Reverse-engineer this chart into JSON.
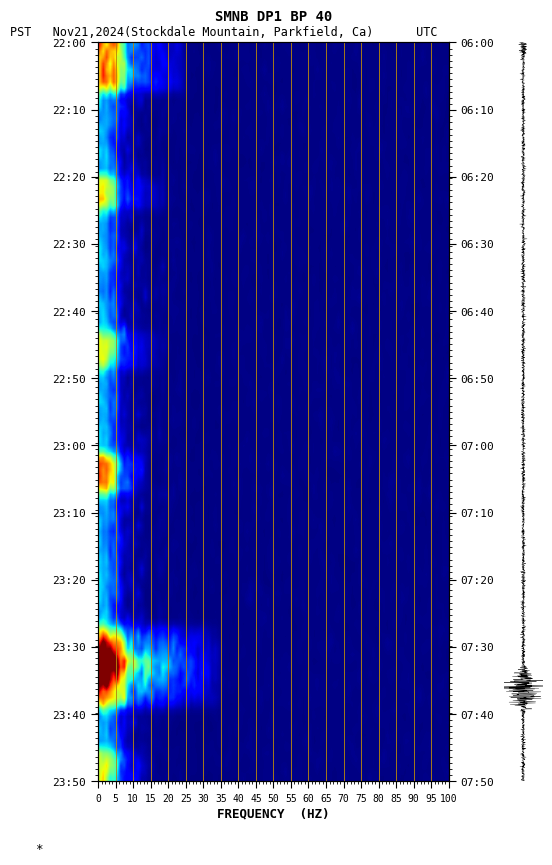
{
  "title_line1": "SMNB DP1 BP 40",
  "title_line2": "PST   Nov21,2024(Stockdale Mountain, Parkfield, Ca)      UTC",
  "xlabel": "FREQUENCY  (HZ)",
  "freq_ticks": [
    0,
    5,
    10,
    15,
    20,
    25,
    30,
    35,
    40,
    45,
    50,
    55,
    60,
    65,
    70,
    75,
    80,
    85,
    90,
    95,
    100
  ],
  "freq_min": 0,
  "freq_max": 100,
  "time_left_labels": [
    "22:00",
    "22:10",
    "22:20",
    "22:30",
    "22:40",
    "22:50",
    "23:00",
    "23:10",
    "23:20",
    "23:30",
    "23:40",
    "23:50"
  ],
  "time_right_labels": [
    "06:00",
    "06:10",
    "06:20",
    "06:30",
    "06:40",
    "06:50",
    "07:00",
    "07:10",
    "07:20",
    "07:30",
    "07:40",
    "07:50"
  ],
  "n_time_steps": 120,
  "n_freq_bins": 100,
  "vline_freqs": [
    5,
    10,
    15,
    20,
    25,
    30,
    35,
    40,
    45,
    50,
    55,
    60,
    65,
    70,
    75,
    80,
    85,
    90,
    95
  ],
  "vline_color": "#b8860b",
  "bg_color": "#ffffff",
  "colormap": "jet",
  "annotation": "*",
  "fig_width": 5.52,
  "fig_height": 8.64,
  "dpi": 100
}
